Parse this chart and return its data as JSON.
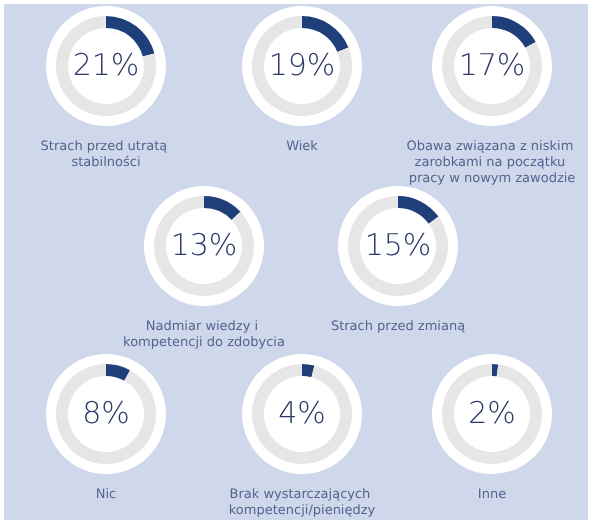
{
  "chart_data": [
    {
      "type": "donut",
      "title": "Strach przed utratą stabilności",
      "categories": [
        null,
        null
      ],
      "values": [
        21,
        79
      ],
      "colors": [
        "#1f3f7a",
        "#e6e6e6"
      ],
      "annotations": [
        "21%"
      ]
    },
    {
      "type": "donut",
      "title": "Wiek",
      "categories": [
        null,
        null
      ],
      "values": [
        19,
        81
      ],
      "colors": [
        "#1f3f7a",
        "#e6e6e6"
      ],
      "annotations": [
        "19%"
      ]
    },
    {
      "type": "donut",
      "title": "Obawa związana z niskim zarobkami na początku pracy w nowym zawodzie",
      "categories": [
        null,
        null
      ],
      "values": [
        17,
        83
      ],
      "colors": [
        "#1f3f7a",
        "#e6e6e6"
      ],
      "annotations": [
        "17%"
      ]
    },
    {
      "type": "donut",
      "title": "Nadmiar wiedzy i kompetencji do zdobycia",
      "categories": [
        null,
        null
      ],
      "values": [
        13,
        87
      ],
      "colors": [
        "#1f3f7a",
        "#e6e6e6"
      ],
      "annotations": [
        "13%"
      ]
    },
    {
      "type": "donut",
      "title": "Strach przed zmianą",
      "categories": [
        null,
        null
      ],
      "values": [
        15,
        85
      ],
      "colors": [
        "#1f3f7a",
        "#e6e6e6"
      ],
      "annotations": [
        "15%"
      ]
    },
    {
      "type": "donut",
      "title": "Nic",
      "categories": [
        null,
        null
      ],
      "values": [
        8,
        92
      ],
      "colors": [
        "#1f3f7a",
        "#e6e6e6"
      ],
      "annotations": [
        "8%"
      ]
    },
    {
      "type": "donut",
      "title": "Brak wystarczających kompetencji/pieniędzy",
      "categories": [
        null,
        null
      ],
      "values": [
        4,
        96
      ],
      "colors": [
        "#1f3f7a",
        "#e6e6e6"
      ],
      "annotations": [
        "4%"
      ]
    },
    {
      "type": "donut",
      "title": "Inne",
      "categories": [
        null,
        null
      ],
      "values": [
        2,
        98
      ],
      "colors": [
        "#1f3f7a",
        "#e6e6e6"
      ],
      "annotations": [
        "2%"
      ]
    }
  ]
}
